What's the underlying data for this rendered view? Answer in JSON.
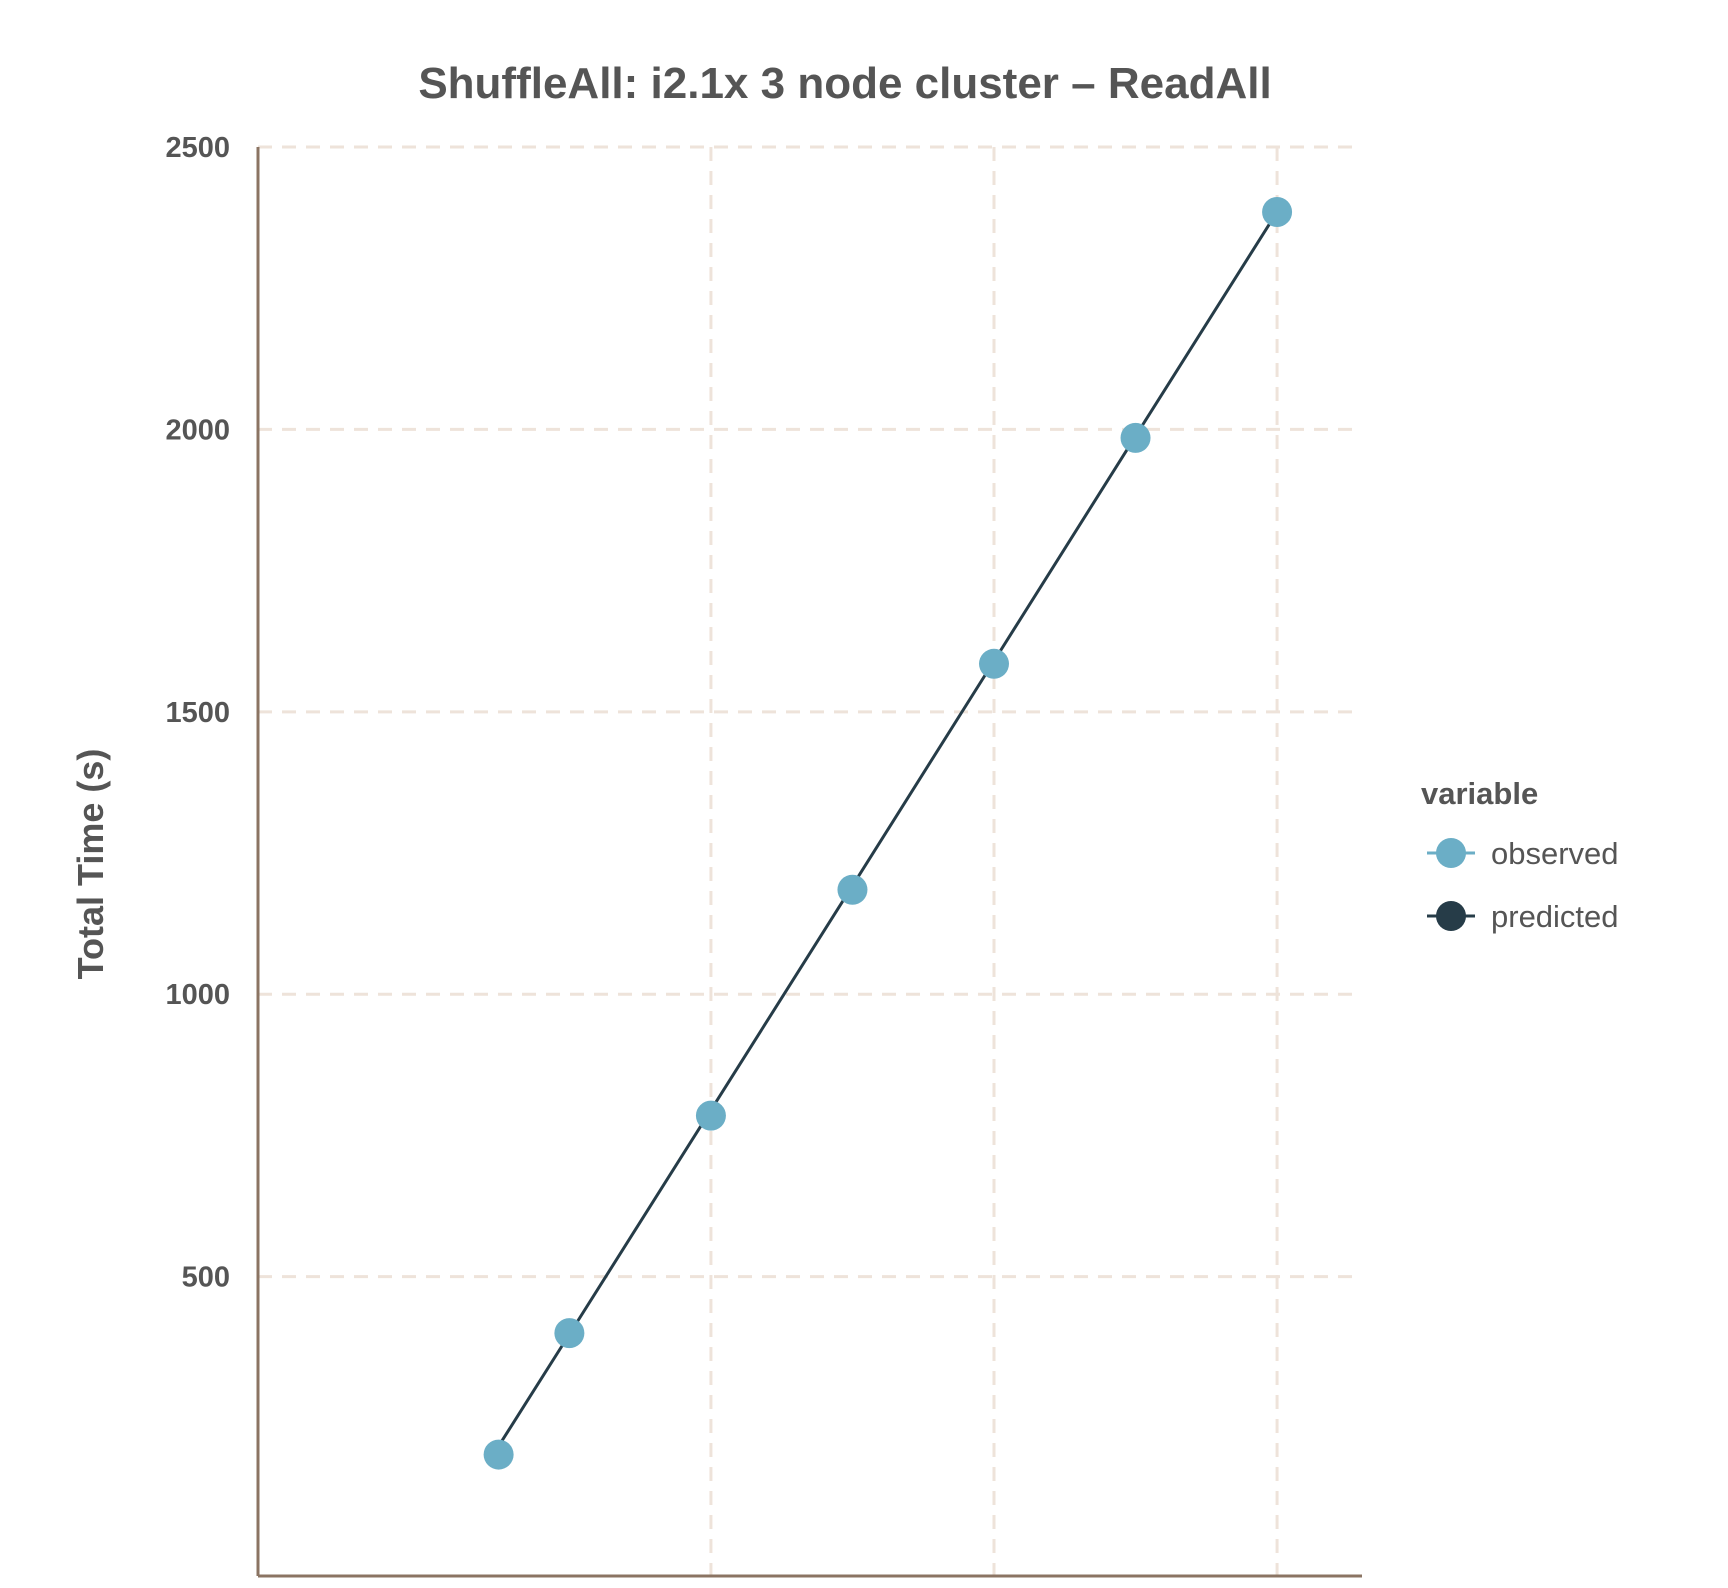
{
  "chart_data": {
    "type": "line",
    "title": "ShuffleAll: i2.1x 3 node cluster – ReadAll",
    "xlabel": "",
    "ylabel": "Total Time (s)",
    "x": [
      0.3,
      0.8,
      1.8,
      2.8,
      3.8,
      4.8,
      5.8
    ],
    "xlim": [
      -1.4,
      6.4
    ],
    "ylim": [
      -30,
      2500
    ],
    "yticks": [
      500,
      1000,
      1500,
      2000,
      2500
    ],
    "ytick_labels": [
      "500",
      "1000",
      "1500",
      "2000",
      "2500"
    ],
    "xgrid": [
      1.8,
      3.8,
      5.8
    ],
    "grid": true,
    "legend_position": "right",
    "legend_title": "variable",
    "series": [
      {
        "name": "observed",
        "color": "#6baec6",
        "marker": "circle",
        "line": false,
        "values": [
          185,
          400,
          785,
          1185,
          1585,
          1985,
          2385
        ]
      },
      {
        "name": "predicted",
        "color": "#263c48",
        "marker": "circle",
        "line": true,
        "values": [
          200,
          398,
          795,
          1192,
          1590,
          1988,
          2385
        ]
      }
    ],
    "colors": {
      "axis": "#8b7463",
      "grid": "#eee3da",
      "text": "#555555"
    }
  }
}
